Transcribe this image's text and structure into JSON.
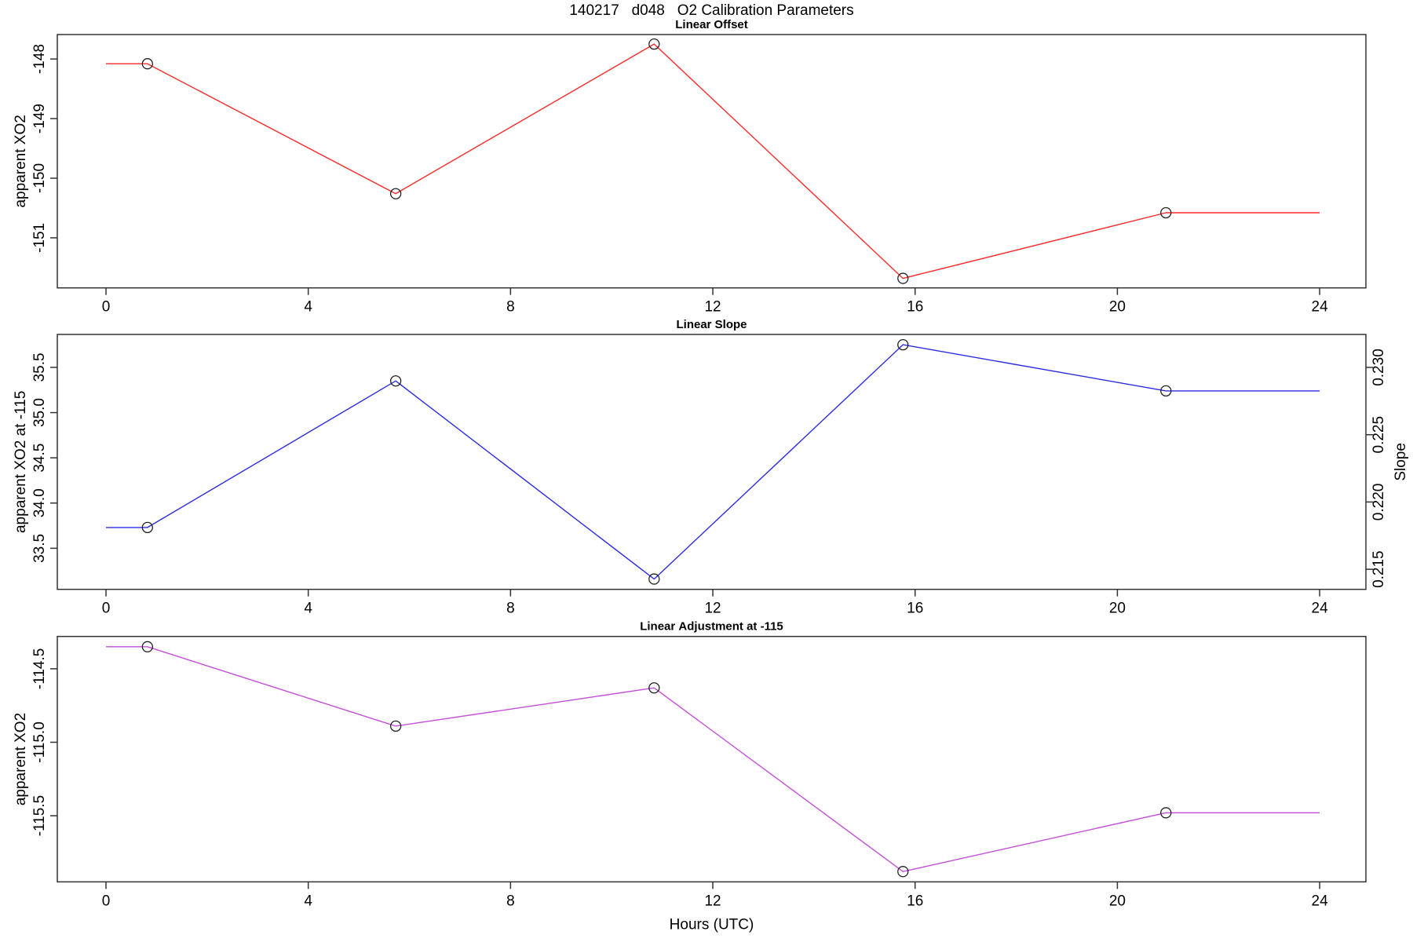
{
  "main_title": "140217   d048   O2 Calibration Parameters",
  "chart_data": [
    {
      "type": "line",
      "title": "Linear Offset",
      "ylabel": "apparent XO2",
      "color": "#ff2a2a",
      "marker": "open-circle",
      "x": [
        0.82,
        5.73,
        10.84,
        15.76,
        20.96
      ],
      "values": [
        -148.08,
        -150.26,
        -147.75,
        -151.68,
        -150.58
      ],
      "extend_x": [
        0,
        24
      ],
      "yticks": [
        -151,
        -150,
        -149,
        -148
      ],
      "ytick_labels": [
        "-151",
        "-150",
        "-149",
        "-148"
      ],
      "ylim": [
        -151.84,
        -147.59
      ],
      "xticks": [
        0,
        4,
        8,
        12,
        16,
        20,
        24
      ],
      "xtick_labels": [
        "0",
        "4",
        "8",
        "12",
        "16",
        "20",
        "24"
      ],
      "xlim": [
        -0.96,
        24.91
      ],
      "grid": "off",
      "legend": "none"
    },
    {
      "type": "line",
      "title": "Linear Slope",
      "ylabel": "apparent XO2 at -115",
      "y2label": "Slope",
      "color": "#2c2ce6",
      "marker": "open-circle",
      "x": [
        0.82,
        5.73,
        10.84,
        15.76,
        20.96
      ],
      "values": [
        33.73,
        35.35,
        33.16,
        35.75,
        35.24
      ],
      "values_slope": [
        0.2182,
        0.229,
        0.2143,
        0.2316,
        0.2282
      ],
      "extend_x": [
        0,
        24
      ],
      "yticks": [
        33.5,
        34.0,
        34.5,
        35.0,
        35.5
      ],
      "ytick_labels": [
        "33.5",
        "34.0",
        "34.5",
        "35.0",
        "35.5"
      ],
      "ylim": [
        33.046,
        35.864
      ],
      "y2ticks": [
        0.215,
        0.22,
        0.225,
        0.23
      ],
      "y2tick_labels": [
        "0.215",
        "0.220",
        "0.225",
        "0.230"
      ],
      "y2lim": [
        0.21351,
        0.23245
      ],
      "xticks": [
        0,
        4,
        8,
        12,
        16,
        20,
        24
      ],
      "xtick_labels": [
        "0",
        "4",
        "8",
        "12",
        "16",
        "20",
        "24"
      ],
      "xlim": [
        -0.96,
        24.91
      ],
      "grid": "off",
      "legend": "none"
    },
    {
      "type": "line",
      "title": "Linear Adjustment at -115",
      "ylabel": "apparent XO2",
      "xlabel": "Hours (UTC)",
      "color": "#c44fd8",
      "marker": "open-circle",
      "x": [
        0.82,
        5.73,
        10.84,
        15.76,
        20.96
      ],
      "values": [
        -114.35,
        -114.89,
        -114.63,
        -115.88,
        -115.48
      ],
      "extend_x": [
        0,
        24
      ],
      "yticks": [
        -115.5,
        -115.0,
        -114.5
      ],
      "ytick_labels": [
        "-115.5",
        "-115.0",
        "-114.5"
      ],
      "ylim": [
        -115.95,
        -114.28
      ],
      "xticks": [
        0,
        4,
        8,
        12,
        16,
        20,
        24
      ],
      "xtick_labels": [
        "0",
        "4",
        "8",
        "12",
        "16",
        "20",
        "24"
      ],
      "xlim": [
        -0.96,
        24.91
      ],
      "grid": "off",
      "legend": "none"
    }
  ]
}
